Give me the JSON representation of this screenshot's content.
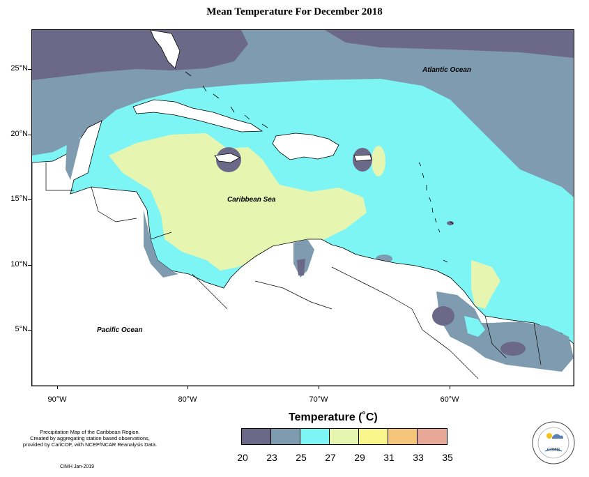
{
  "title": "Mean Temperature For December 2018",
  "axes": {
    "lat_labels": [
      "25°N",
      "20°N",
      "15°N",
      "10°N",
      "5°N"
    ],
    "lon_labels": [
      "90°W",
      "80°W",
      "70°W",
      "60°W"
    ]
  },
  "map_labels": {
    "atlantic": "Atlantic Ocean",
    "caribbean": "Caribbean Sea",
    "pacific": "Pacific Ocean"
  },
  "legend": {
    "title": "Temperature (˚C)",
    "ticks": [
      "20",
      "23",
      "25",
      "27",
      "29",
      "31",
      "33",
      "35"
    ],
    "colors": [
      "#6b6888",
      "#7f9bb0",
      "#7ef5f5",
      "#e6f5b0",
      "#f8f58a",
      "#f5c57a",
      "#e8a898"
    ]
  },
  "credits": {
    "line1": "Precipitation Map of the Caribbean Region.",
    "line2": "Created by aggregating station based observations,",
    "line3": "provided by CariCOF, with NCEP/NCAR Reanalysis Data.",
    "date": "CIMH Jan-2019"
  },
  "logo": {
    "text": "CIMH"
  },
  "colors": {
    "c20": "#6b6888",
    "c23": "#7f9bb0",
    "c25": "#7ef5f5",
    "c27": "#e6f5b0",
    "land": "#ffffff",
    "border": "#000000"
  }
}
